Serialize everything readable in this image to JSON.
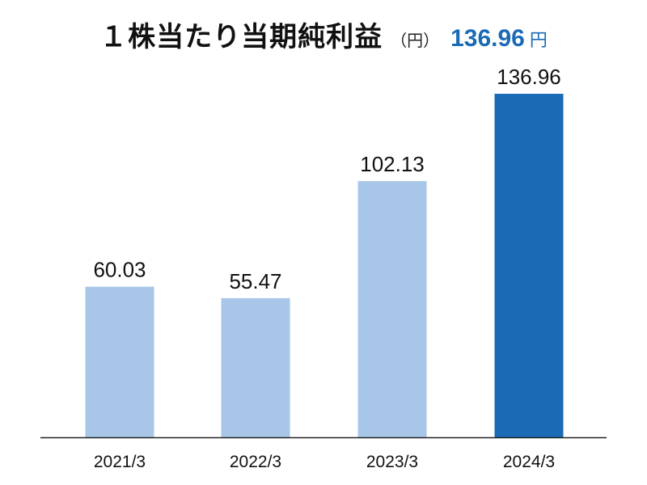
{
  "header": {
    "title": "１株当たり当期純利益",
    "unit": "（円）",
    "highlight_value": "136.96",
    "highlight_unit": "円"
  },
  "colors": {
    "highlight": "#1b6ab6",
    "bar_default": "#a8c6e8",
    "bar_highlight": "#1b6ab6",
    "axis": "#222222",
    "text": "#111111"
  },
  "chart_data": {
    "type": "bar",
    "title": "１株当たり当期純利益",
    "unit": "円",
    "categories": [
      "2021/3",
      "2022/3",
      "2023/3",
      "2024/3"
    ],
    "values": [
      60.03,
      55.47,
      102.13,
      136.96
    ],
    "value_labels": [
      "60.03",
      "55.47",
      "102.13",
      "136.96"
    ],
    "highlight_index": 3,
    "ylim": [
      0,
      150
    ],
    "grid": false,
    "legend": "none"
  }
}
